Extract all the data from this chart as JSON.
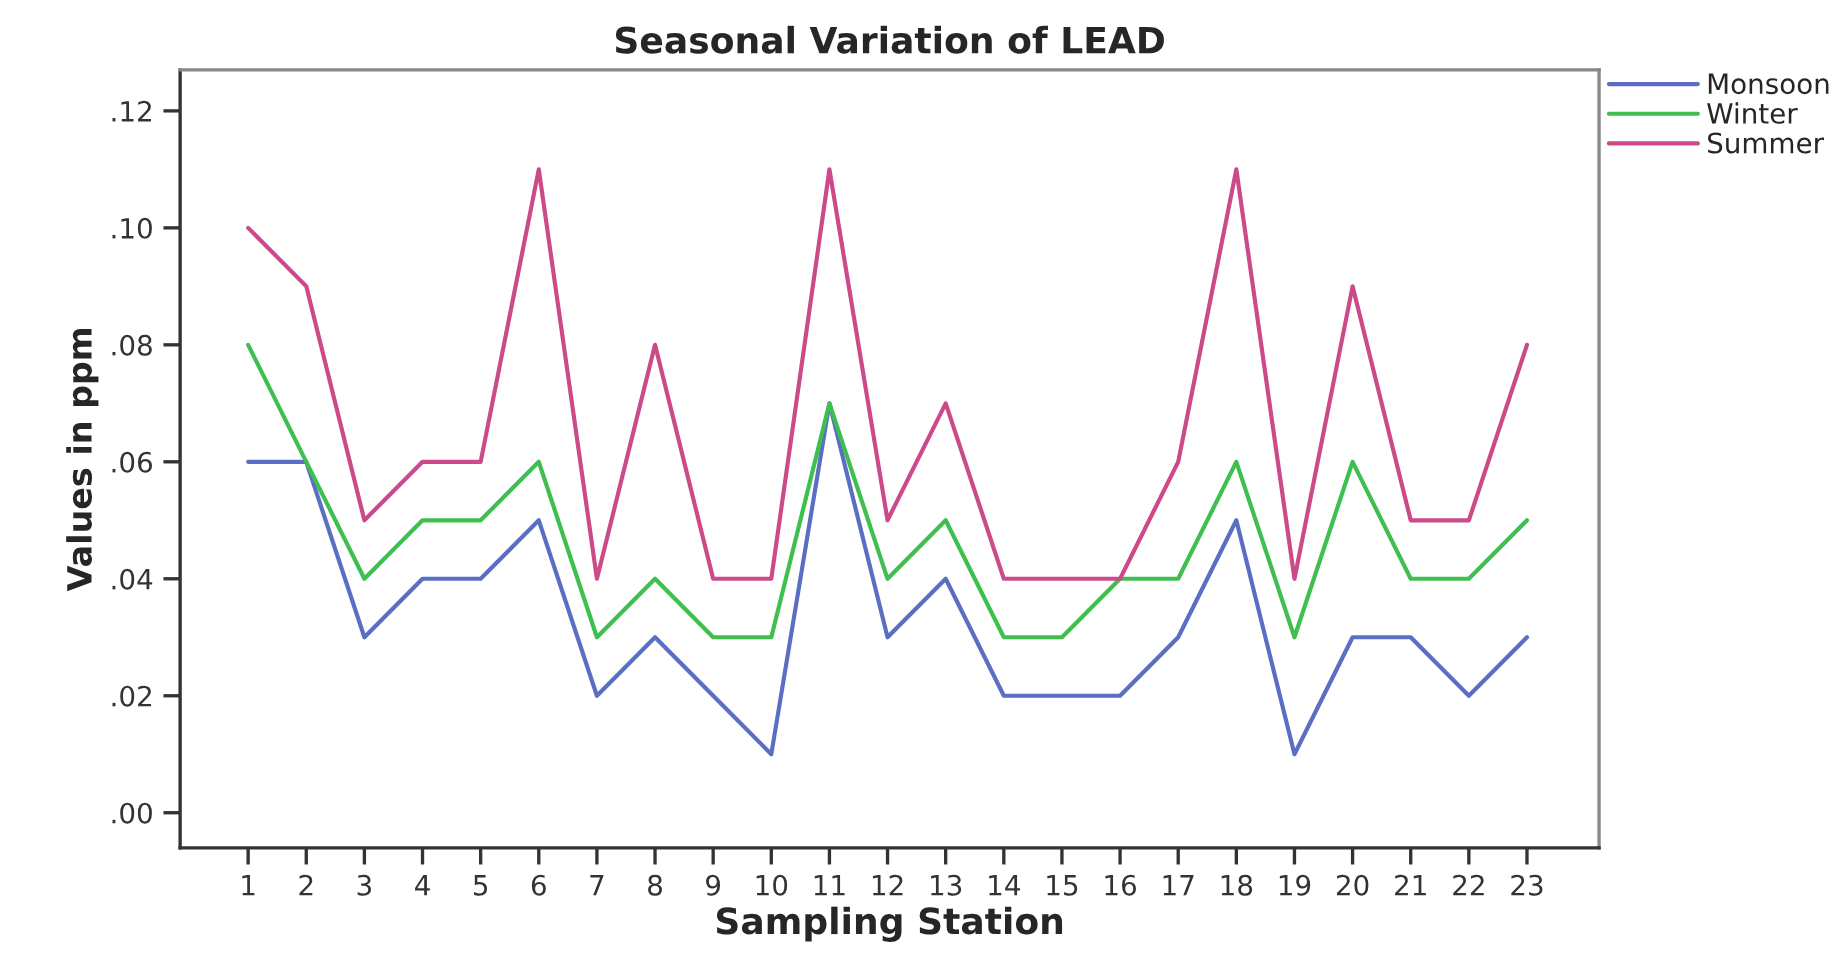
{
  "chart_data": {
    "type": "line",
    "title": "Seasonal Variation of LEAD",
    "xlabel": "Sampling Station",
    "ylabel": "Values in ppm",
    "categories": [
      "1",
      "2",
      "3",
      "4",
      "5",
      "6",
      "7",
      "8",
      "9",
      "10",
      "11",
      "12",
      "13",
      "14",
      "15",
      "16",
      "17",
      "18",
      "19",
      "20",
      "21",
      "22",
      "23"
    ],
    "series": [
      {
        "name": "Monsoon",
        "color": "#5a6fc4",
        "values": [
          0.06,
          0.06,
          0.03,
          0.04,
          0.04,
          0.05,
          0.02,
          0.03,
          0.02,
          0.01,
          0.07,
          0.03,
          0.04,
          0.02,
          0.02,
          0.02,
          0.03,
          0.05,
          0.01,
          0.03,
          0.03,
          0.02,
          0.03
        ]
      },
      {
        "name": "Winter",
        "color": "#3fbf4f",
        "values": [
          0.08,
          0.06,
          0.04,
          0.05,
          0.05,
          0.06,
          0.03,
          0.04,
          0.03,
          0.03,
          0.07,
          0.04,
          0.05,
          0.03,
          0.03,
          0.04,
          0.04,
          0.06,
          0.03,
          0.06,
          0.04,
          0.04,
          0.05
        ]
      },
      {
        "name": "Summer",
        "color": "#cc4a8a",
        "values": [
          0.1,
          0.09,
          0.05,
          0.06,
          0.06,
          0.11,
          0.04,
          0.08,
          0.04,
          0.04,
          0.11,
          0.05,
          0.07,
          0.04,
          0.04,
          0.04,
          0.06,
          0.11,
          0.04,
          0.09,
          0.05,
          0.05,
          0.08
        ]
      }
    ],
    "ylim": [
      -0.006,
      0.127
    ],
    "yticks": [
      {
        "value": 0,
        "label": ".00"
      },
      {
        "value": 0.02,
        "label": ".02"
      },
      {
        "value": 0.04,
        "label": ".04"
      },
      {
        "value": 0.06,
        "label": ".06"
      },
      {
        "value": 0.08,
        "label": ".08"
      },
      {
        "value": 0.1,
        "label": ".10"
      },
      {
        "value": 0.12,
        "label": ".12"
      }
    ],
    "grid": false,
    "legend": "top right",
    "line_style": "solid",
    "marker": "none"
  }
}
